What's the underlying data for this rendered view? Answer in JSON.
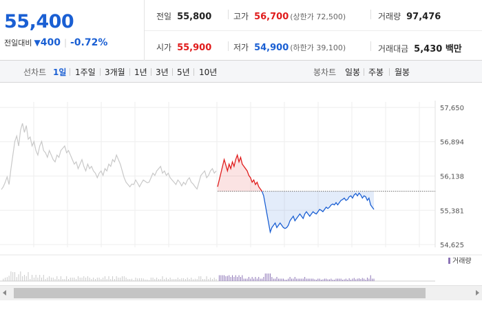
{
  "quote": {
    "price": "55,400",
    "change_label": "전일대비",
    "change_arrow": "▼",
    "change_amount": "400",
    "change_rate": "-0.72%",
    "prev_close": {
      "label": "전일",
      "value": "55,800"
    },
    "high": {
      "label": "고가",
      "value": "56,700",
      "limit": "(상한가 72,500)"
    },
    "volume": {
      "label": "거래량",
      "value": "97,476"
    },
    "open": {
      "label": "시가",
      "value": "55,900"
    },
    "low": {
      "label": "저가",
      "value": "54,900",
      "limit": "(하한가 39,100)"
    },
    "trade_value": {
      "label": "거래대금",
      "value": "5,430 백만"
    }
  },
  "toolbar": {
    "line_label": "선차트",
    "line_periods": [
      "1일",
      "1주일",
      "3개월",
      "1년",
      "3년",
      "5년",
      "10년"
    ],
    "active_period": "1일",
    "candle_label": "봉차트",
    "candle_periods": [
      "일봉",
      "주봉",
      "월봉"
    ]
  },
  "colors": {
    "up": "#e01b1b",
    "down": "#1a5fd3",
    "prev_day_line": "#c8c8c8",
    "volume_prev": "#c9c9c9",
    "volume_today": "#8c74b6"
  },
  "chart_data": {
    "type": "line",
    "y_ticks": [
      "57,650",
      "56,894",
      "56,138",
      "55,381",
      "54,625"
    ],
    "ylim": [
      54625,
      57650
    ],
    "reference_price": 55800,
    "previous_session": [
      55840,
      55900,
      56000,
      56120,
      55950,
      56300,
      56600,
      56900,
      57020,
      56800,
      57150,
      57300,
      57100,
      57250,
      56950,
      57000,
      56800,
      56900,
      56700,
      56600,
      56800,
      56900,
      56700,
      56650,
      56550,
      56700,
      56600,
      56500,
      56450,
      56600,
      56550,
      56700,
      56750,
      56800,
      56650,
      56700,
      56600,
      56500,
      56400,
      56450,
      56300,
      56400,
      56500,
      56350,
      56250,
      56400,
      56300,
      56350,
      56250,
      56200,
      56100,
      56200,
      56250,
      56150,
      56300,
      56250,
      56400,
      56350,
      56500,
      56450,
      56600,
      56500,
      56400,
      56250,
      56100,
      56000,
      55950,
      55900,
      55960,
      55950,
      56050,
      55980,
      55900,
      55980,
      56050,
      56020,
      55990,
      56000,
      56100,
      56200,
      56150,
      56250,
      56300,
      56350,
      56200,
      56250,
      56150,
      56200,
      56100,
      56050,
      56000,
      55950,
      56050,
      56000,
      55920,
      56000,
      55950,
      56050,
      56100,
      56000,
      55960,
      55900,
      55850,
      56000,
      56150,
      56200,
      56250,
      56100,
      56150,
      56250,
      56300,
      56200,
      56250
    ],
    "today_session": [
      55900,
      56050,
      56200,
      56350,
      56500,
      56380,
      56250,
      56400,
      56300,
      56450,
      56350,
      56500,
      56600,
      56450,
      56550,
      56400,
      56350,
      56300,
      56250,
      56150,
      56100,
      56000,
      56050,
      55950,
      56000,
      55900,
      55850,
      55800,
      55700,
      55500,
      55300,
      55100,
      54900,
      55000,
      55050,
      55100,
      55000,
      55050,
      55100,
      55050,
      55000,
      54980,
      55000,
      55050,
      55150,
      55200,
      55250,
      55150,
      55200,
      55250,
      55300,
      55250,
      55200,
      55300,
      55350,
      55300,
      55250,
      55300,
      55350,
      55320,
      55300,
      55350,
      55400,
      55380,
      55350,
      55400,
      55450,
      55420,
      55450,
      55500,
      55520,
      55500,
      55550,
      55500,
      55550,
      55600,
      55620,
      55650,
      55600,
      55620,
      55680,
      55700,
      55650,
      55720,
      55750,
      55700,
      55760,
      55720,
      55650,
      55700,
      55680,
      55600,
      55650,
      55500,
      55450,
      55400
    ],
    "volume_label": "거래량"
  }
}
